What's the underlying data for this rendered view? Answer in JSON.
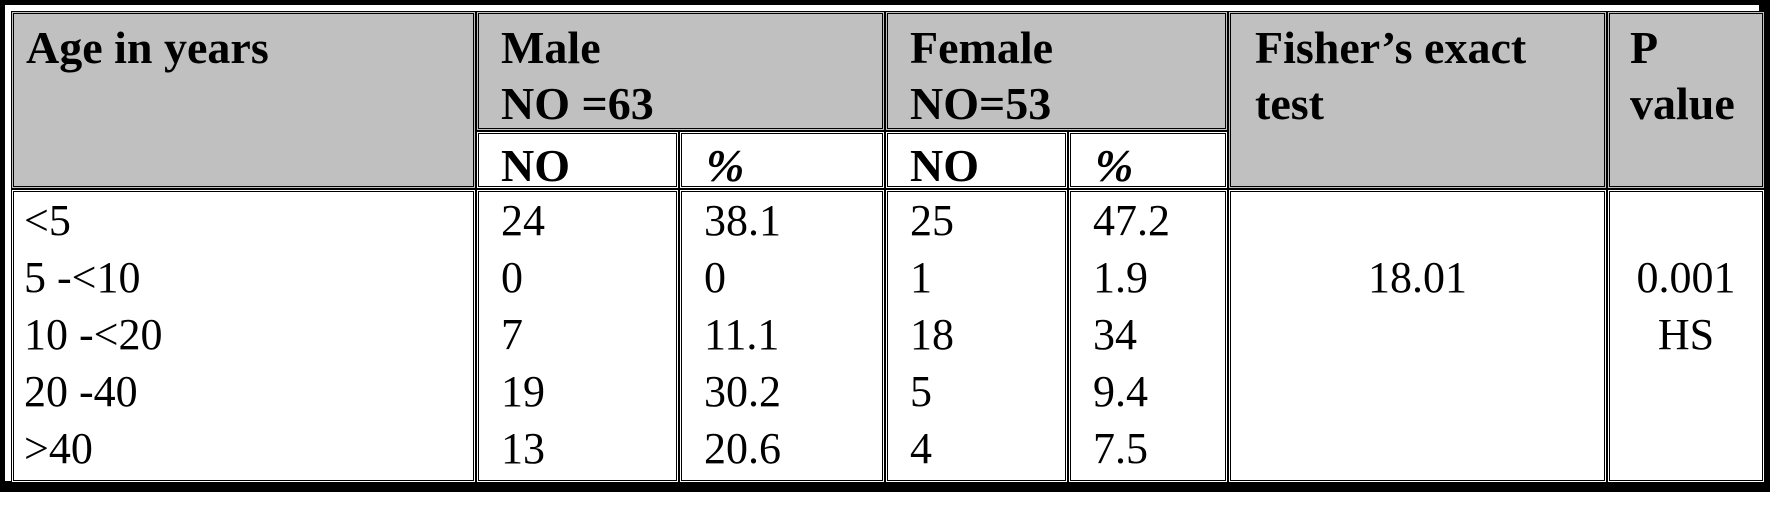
{
  "table": {
    "headers": {
      "age": "Age in years",
      "male_title": "Male",
      "male_count": "NO =63",
      "female_title": "Female",
      "female_count": "NO=53",
      "fisher_line1": "Fisher’s exact",
      "fisher_line2": "test",
      "p_line1": "P",
      "p_line2": "value",
      "sub_no": "NO",
      "sub_pct": "%"
    },
    "rows": [
      {
        "age": "<5",
        "male_no": "24",
        "male_pct": "38.1",
        "female_no": "25",
        "female_pct": "47.2"
      },
      {
        "age": "5 -<10",
        "male_no": "0",
        "male_pct": "0",
        "female_no": "1",
        "female_pct": "1.9"
      },
      {
        "age": "10 -<20",
        "male_no": "7",
        "male_pct": "11.1",
        "female_no": "18",
        "female_pct": "34"
      },
      {
        "age": "20 -40",
        "male_no": "19",
        "male_pct": "30.2",
        "female_no": "5",
        "female_pct": "9.4"
      },
      {
        "age": ">40",
        "male_no": "13",
        "male_pct": "20.6",
        "female_no": "4",
        "female_pct": "7.5"
      }
    ],
    "fisher_value": "18.01",
    "p_value": "0.001",
    "significance": "HS"
  }
}
